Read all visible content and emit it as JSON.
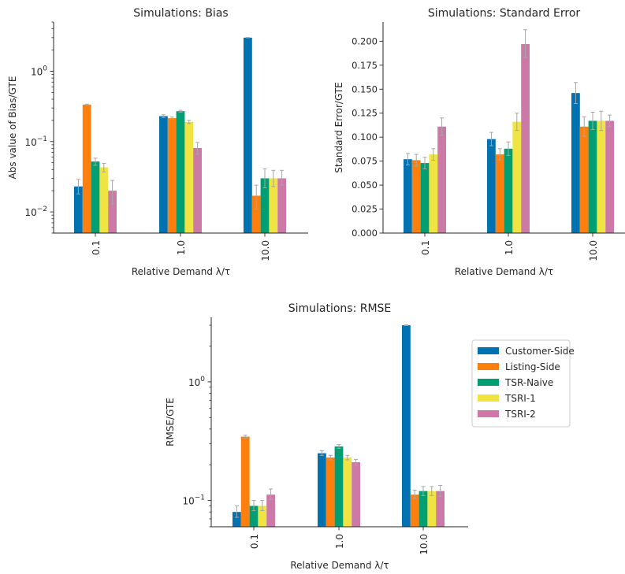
{
  "colors": {
    "Customer-Side": "#0072b2",
    "Listing-Side": "#ff7f0e",
    "TSR-Naive": "#009e73",
    "TSRI-1": "#f0e442",
    "TSRI-2": "#cc79a7",
    "errorbar": "#a6a6a6",
    "axis": "#262626"
  },
  "legend": {
    "placement": "right of bottom chart",
    "entries": [
      "Customer-Side",
      "Listing-Side",
      "TSR-Naive",
      "TSRI-1",
      "TSRI-2"
    ]
  },
  "chart_data": [
    {
      "id": "bias",
      "type": "bar",
      "title": "Simulations: Bias",
      "xlabel": "Relative Demand λ/τ",
      "ylabel": "Abs value of Bias/GTE",
      "yscale": "log",
      "ylim": [
        0.005,
        5.0
      ],
      "yticks": [
        {
          "value": 0.01,
          "base": "10",
          "exp": "−2"
        },
        {
          "value": 0.1,
          "base": "10",
          "exp": "−1"
        },
        {
          "value": 1.0,
          "base": "10",
          "exp": "0"
        }
      ],
      "categories": [
        "0.1",
        "1.0",
        "10.0"
      ],
      "series": [
        {
          "name": "Customer-Side",
          "values": [
            0.023,
            0.23,
            3.0
          ],
          "err_low": [
            0.018,
            0.22,
            2.98
          ],
          "err_high": [
            0.029,
            0.24,
            3.02
          ]
        },
        {
          "name": "Listing-Side",
          "values": [
            0.335,
            0.215,
            0.017
          ],
          "err_low": [
            0.33,
            0.207,
            0.011
          ],
          "err_high": [
            0.34,
            0.223,
            0.024
          ]
        },
        {
          "name": "TSR-Naive",
          "values": [
            0.052,
            0.27,
            0.03
          ],
          "err_low": [
            0.046,
            0.262,
            0.022
          ],
          "err_high": [
            0.058,
            0.278,
            0.041
          ]
        },
        {
          "name": "TSRI-1",
          "values": [
            0.043,
            0.19,
            0.03
          ],
          "err_low": [
            0.037,
            0.18,
            0.023
          ],
          "err_high": [
            0.049,
            0.2,
            0.039
          ]
        },
        {
          "name": "TSRI-2",
          "values": [
            0.02,
            0.081,
            0.03
          ],
          "err_low": [
            0.013,
            0.066,
            0.024
          ],
          "err_high": [
            0.028,
            0.097,
            0.039
          ]
        }
      ]
    },
    {
      "id": "se",
      "type": "bar",
      "title": "Simulations: Standard Error",
      "xlabel": "Relative Demand λ/τ",
      "ylabel": "Standard Error/GTE",
      "yscale": "linear",
      "ylim": [
        0,
        0.22
      ],
      "yticks": [
        {
          "value": 0.0,
          "label": "0.000"
        },
        {
          "value": 0.025,
          "label": "0.025"
        },
        {
          "value": 0.05,
          "label": "0.050"
        },
        {
          "value": 0.075,
          "label": "0.075"
        },
        {
          "value": 0.1,
          "label": "0.100"
        },
        {
          "value": 0.125,
          "label": "0.125"
        },
        {
          "value": 0.15,
          "label": "0.150"
        },
        {
          "value": 0.175,
          "label": "0.175"
        },
        {
          "value": 0.2,
          "label": "0.200"
        }
      ],
      "categories": [
        "0.1",
        "1.0",
        "10.0"
      ],
      "series": [
        {
          "name": "Customer-Side",
          "values": [
            0.077,
            0.098,
            0.146
          ],
          "err_low": [
            0.071,
            0.091,
            0.135
          ],
          "err_high": [
            0.083,
            0.105,
            0.157
          ]
        },
        {
          "name": "Listing-Side",
          "values": [
            0.076,
            0.082,
            0.111
          ],
          "err_low": [
            0.07,
            0.076,
            0.101
          ],
          "err_high": [
            0.082,
            0.088,
            0.121
          ]
        },
        {
          "name": "TSR-Naive",
          "values": [
            0.073,
            0.088,
            0.117
          ],
          "err_low": [
            0.067,
            0.081,
            0.108
          ],
          "err_high": [
            0.079,
            0.095,
            0.126
          ]
        },
        {
          "name": "TSRI-1",
          "values": [
            0.082,
            0.116,
            0.117
          ],
          "err_low": [
            0.076,
            0.107,
            0.107
          ],
          "err_high": [
            0.088,
            0.125,
            0.127
          ]
        },
        {
          "name": "TSRI-2",
          "values": [
            0.111,
            0.197,
            0.117
          ],
          "err_low": [
            0.102,
            0.183,
            0.111
          ],
          "err_high": [
            0.12,
            0.212,
            0.123
          ]
        }
      ]
    },
    {
      "id": "rmse",
      "type": "bar",
      "title": "Simulations: RMSE",
      "xlabel": "Relative Demand λ/τ",
      "ylabel": "RMSE/GTE",
      "yscale": "log",
      "ylim": [
        0.06,
        3.5
      ],
      "yticks": [
        {
          "value": 0.1,
          "base": "10",
          "exp": "−1"
        },
        {
          "value": 1.0,
          "base": "10",
          "exp": "0"
        }
      ],
      "categories": [
        "0.1",
        "1.0",
        "10.0"
      ],
      "series": [
        {
          "name": "Customer-Side",
          "values": [
            0.08,
            0.25,
            3.0
          ],
          "err_low": [
            0.072,
            0.24,
            2.98
          ],
          "err_high": [
            0.09,
            0.262,
            3.02
          ]
        },
        {
          "name": "Listing-Side",
          "values": [
            0.345,
            0.23,
            0.112
          ],
          "err_low": [
            0.335,
            0.22,
            0.104
          ],
          "err_high": [
            0.355,
            0.24,
            0.122
          ]
        },
        {
          "name": "TSR-Naive",
          "values": [
            0.09,
            0.285,
            0.12
          ],
          "err_low": [
            0.082,
            0.275,
            0.11
          ],
          "err_high": [
            0.1,
            0.296,
            0.131
          ]
        },
        {
          "name": "TSRI-1",
          "values": [
            0.09,
            0.23,
            0.12
          ],
          "err_low": [
            0.082,
            0.22,
            0.11
          ],
          "err_high": [
            0.1,
            0.24,
            0.131
          ]
        },
        {
          "name": "TSRI-2",
          "values": [
            0.112,
            0.21,
            0.12
          ],
          "err_low": [
            0.102,
            0.198,
            0.108
          ],
          "err_high": [
            0.125,
            0.222,
            0.134
          ]
        }
      ]
    }
  ]
}
